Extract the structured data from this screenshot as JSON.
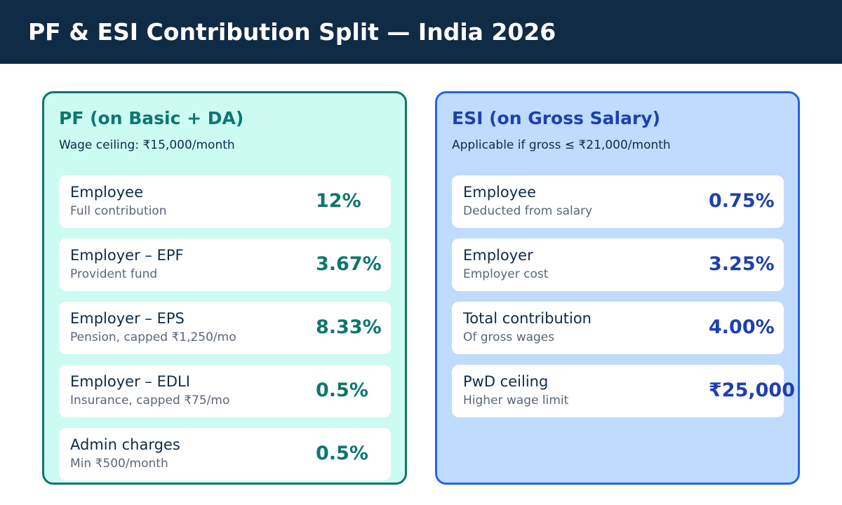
{
  "header": {
    "title": "PF & ESI Contribution Split — India 2026"
  },
  "pf": {
    "title": "PF (on Basic + DA)",
    "subtitle": "Wage ceiling: ₹15,000/month",
    "items": [
      {
        "label": "Employee",
        "note": "Full contribution",
        "value": "12%"
      },
      {
        "label": "Employer – EPF",
        "note": "Provident fund",
        "value": "3.67%"
      },
      {
        "label": "Employer – EPS",
        "note": "Pension, capped ₹1,250/mo",
        "value": "8.33%"
      },
      {
        "label": "Employer – EDLI",
        "note": "Insurance, capped ₹75/mo",
        "value": "0.5%"
      },
      {
        "label": "Admin charges",
        "note": "Min ₹500/month",
        "value": "0.5%"
      }
    ]
  },
  "esi": {
    "title": "ESI (on Gross Salary)",
    "subtitle": "Applicable if gross ≤ ₹21,000/month",
    "items": [
      {
        "label": "Employee",
        "note": "Deducted from salary",
        "value": "0.75%"
      },
      {
        "label": "Employer",
        "note": "Employer cost",
        "value": "3.25%"
      },
      {
        "label": "Total contribution",
        "note": "Of gross wages",
        "value": "4.00%"
      },
      {
        "label": "PwD ceiling",
        "note": "Higher wage limit",
        "value": "₹25,000"
      }
    ]
  },
  "colors": {
    "header_bg": "#0f2b46",
    "pf_accent": "#0f766e",
    "pf_bg": "#ccfbf1",
    "esi_accent": "#1e40af",
    "esi_border": "#2563eb",
    "esi_bg": "#bfdbfe"
  }
}
